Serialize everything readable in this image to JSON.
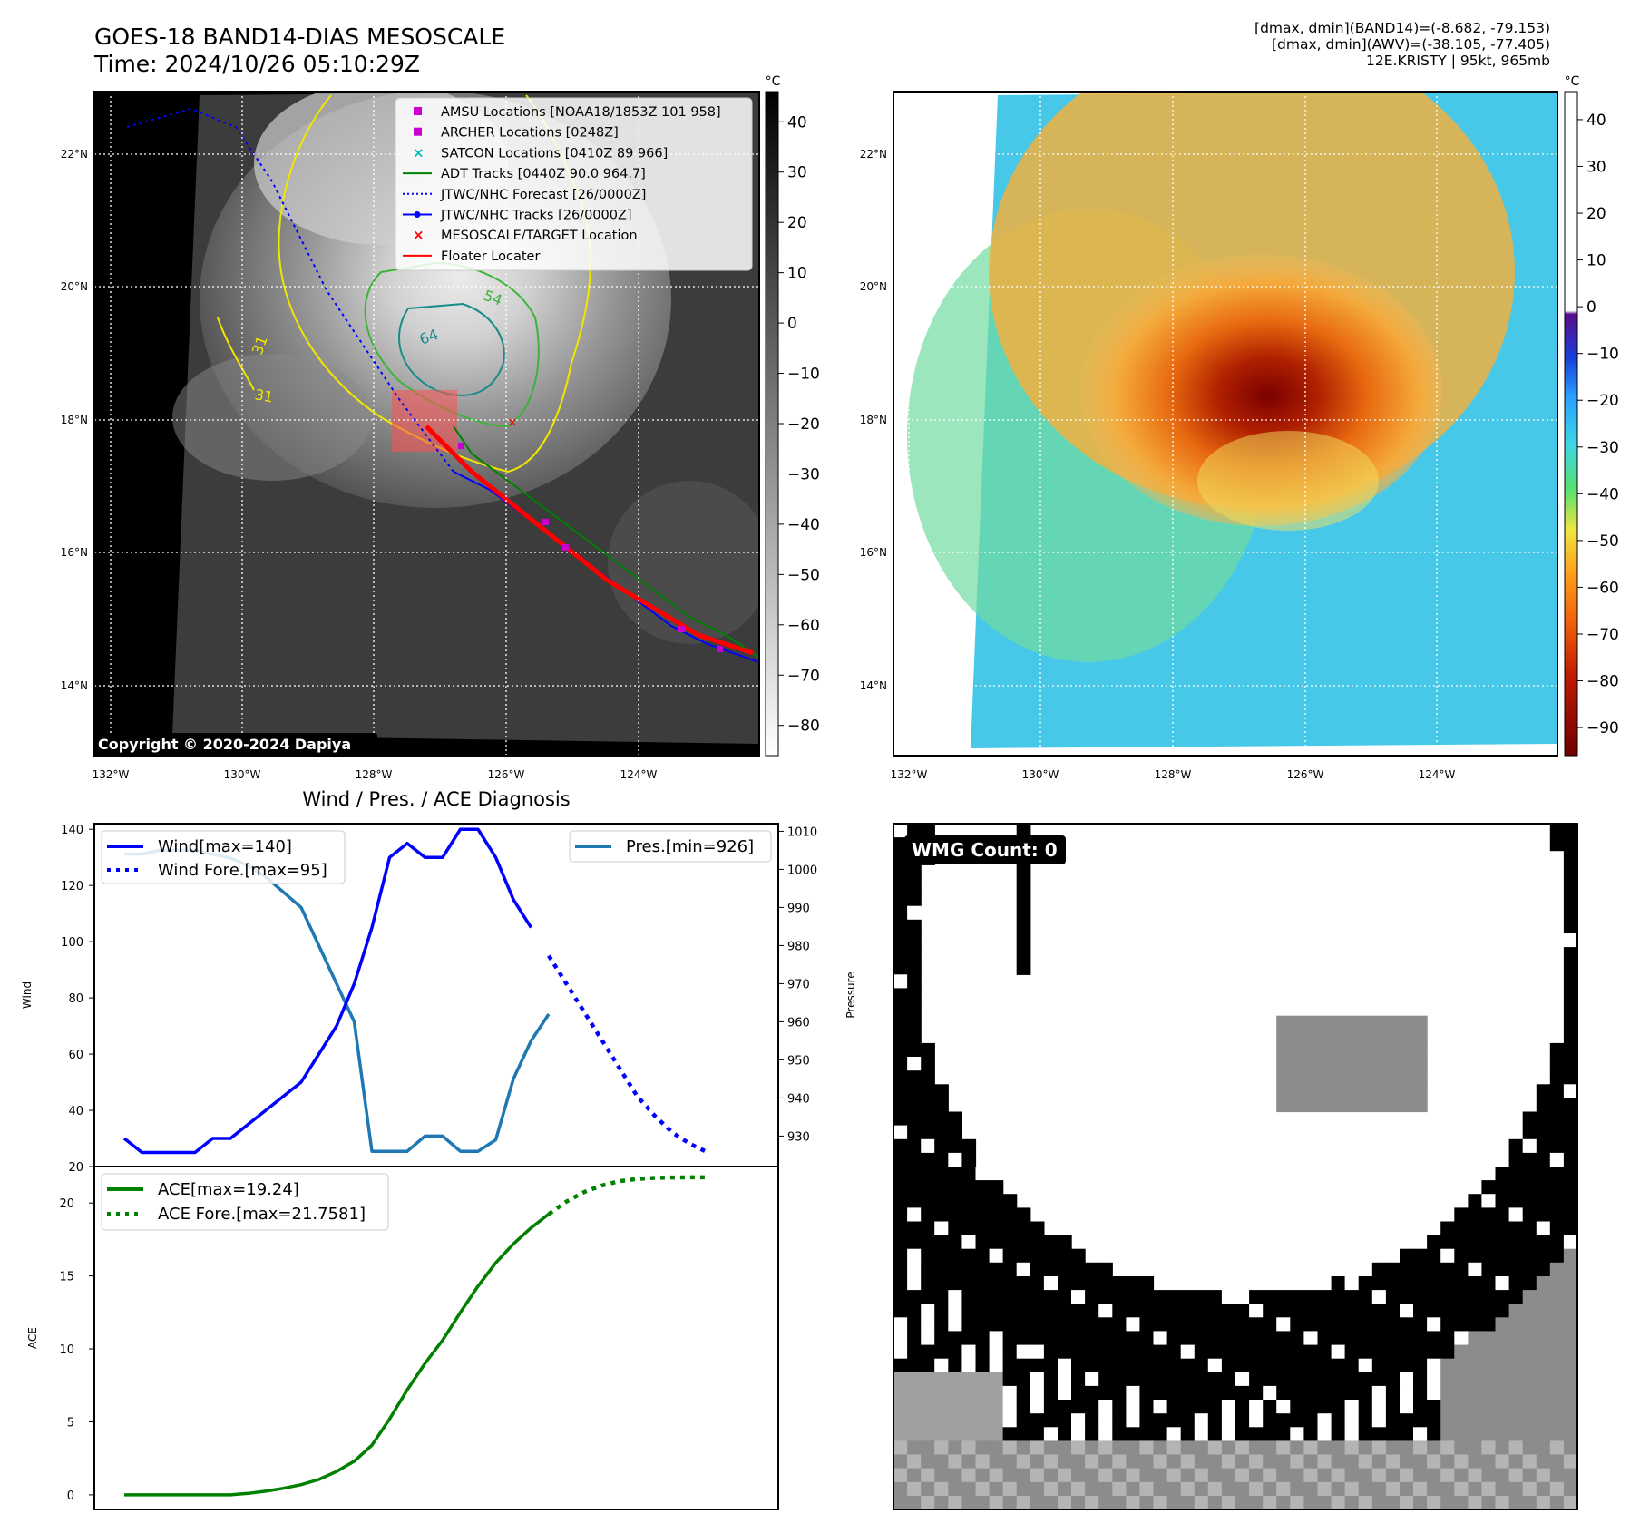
{
  "header": {
    "title_line1": "GOES-18 BAND14-DIAS MESOSCALE",
    "title_line2": "Time: 2024/10/26 05:10:29Z",
    "info_line1": "[dmax, dmin](BAND14)=(-8.682, -79.153)",
    "info_line2": "[dmax, dmin](AWV)=(-38.105, -77.405)",
    "info_line3": "12E.KRISTY | 95kt, 965mb"
  },
  "map_axes": {
    "lon_labels": [
      "132°W",
      "130°W",
      "128°W",
      "126°W",
      "124°W"
    ],
    "lat_labels": [
      "22°N",
      "20°N",
      "18°N",
      "16°N",
      "14°N"
    ]
  },
  "ir_panel": {
    "colorbar_unit": "°C",
    "colorbar_ticks": [
      "40",
      "30",
      "20",
      "10",
      "0",
      "−10",
      "−20",
      "−30",
      "−40",
      "−50",
      "−60",
      "−70",
      "−80"
    ],
    "contour_labels": [
      "54",
      "64",
      "31",
      "31"
    ],
    "copyright": "Copyright © 2020-2024 Dapiya",
    "legend": [
      {
        "label": "AMSU Locations [NOAA18/1853Z 101 958]",
        "color": "#cc00cc",
        "marker": "square"
      },
      {
        "label": "ARCHER Locations [0248Z]",
        "color": "#cc00cc",
        "marker": "square"
      },
      {
        "label": "SATCON Locations [0410Z 89 966]",
        "color": "#00bbbb",
        "marker": "x"
      },
      {
        "label": "ADT Tracks [0440Z 90.0 964.7]",
        "color": "#008000",
        "marker": "line"
      },
      {
        "label": "JTWC/NHC Forecast [26/0000Z]",
        "color": "#0000ff",
        "marker": "dotted"
      },
      {
        "label": "JTWC/NHC Tracks [26/0000Z]",
        "color": "#0000ff",
        "marker": "line-dot"
      },
      {
        "label": "MESOSCALE/TARGET Location",
        "color": "#ff0000",
        "marker": "x"
      },
      {
        "label": "Floater Locater",
        "color": "#ff0000",
        "marker": "line"
      }
    ]
  },
  "wv_panel": {
    "colorbar_unit": "°C",
    "colorbar_ticks": [
      "40",
      "30",
      "20",
      "10",
      "0",
      "−10",
      "−20",
      "−30",
      "−40",
      "−50",
      "−60",
      "−70",
      "−80",
      "−90"
    ]
  },
  "wmg_panel": {
    "badge": "WMG Count: 0"
  },
  "chart_data": [
    {
      "type": "line",
      "title": "Wind / Pres. / ACE Diagnosis",
      "ylabel": "Wind",
      "ylim": [
        20,
        142
      ],
      "yticks": [
        20,
        40,
        60,
        80,
        100,
        120,
        140
      ],
      "x": [
        0,
        1,
        2,
        3,
        4,
        5,
        6,
        7,
        8,
        9,
        10,
        11,
        12,
        13,
        14,
        15,
        16,
        17,
        18,
        19,
        20,
        21,
        22,
        23,
        24,
        25,
        26,
        27,
        28,
        29,
        30,
        31,
        32,
        33
      ],
      "series": [
        {
          "name": "Wind[max=140]",
          "color": "#0000ff",
          "style": "solid",
          "x": [
            0,
            1,
            2,
            3,
            4,
            5,
            6,
            7,
            8,
            9,
            10,
            11,
            12,
            13,
            14,
            15,
            16,
            17,
            18,
            19,
            20,
            21,
            22,
            23
          ],
          "values": [
            30,
            25,
            25,
            25,
            25,
            30,
            30,
            35,
            40,
            45,
            50,
            60,
            70,
            85,
            105,
            130,
            135,
            130,
            130,
            140,
            140,
            130,
            115,
            105
          ]
        },
        {
          "name": "Wind Fore.[max=95]",
          "color": "#0000ff",
          "style": "dotted",
          "x": [
            24,
            25,
            26,
            27,
            28,
            29,
            30,
            31,
            32,
            33
          ],
          "values": [
            95,
            85,
            75,
            65,
            55,
            45,
            38,
            32,
            28,
            25
          ]
        }
      ],
      "secondary": {
        "ylabel": "Pressure",
        "ylim": [
          922,
          1012
        ],
        "yticks": [
          930,
          940,
          950,
          960,
          970,
          980,
          990,
          1000,
          1010
        ],
        "series": [
          {
            "name": "Pres.[min=926]",
            "color": "#1f77b4",
            "style": "solid",
            "x": [
              0,
              1,
              2,
              3,
              4,
              5,
              6,
              7,
              8,
              9,
              10,
              11,
              12,
              13,
              14,
              15,
              16,
              17,
              18,
              19,
              20,
              21,
              22,
              23,
              24
            ],
            "values": [
              1004,
              1004,
              1005,
              1005,
              1005,
              1004,
              1003,
              1001,
              998,
              994,
              990,
              980,
              970,
              960,
              926,
              926,
              926,
              930,
              930,
              926,
              926,
              929,
              945,
              955,
              962
            ]
          }
        ]
      },
      "legend_left": "upper-left",
      "legend_right": "upper-right"
    },
    {
      "type": "line",
      "ylabel": "ACE",
      "ylim": [
        -1,
        22.5
      ],
      "yticks": [
        0,
        5,
        10,
        15,
        20
      ],
      "series": [
        {
          "name": "ACE[max=19.24]",
          "color": "#008000",
          "style": "solid",
          "x": [
            0,
            1,
            2,
            3,
            4,
            5,
            6,
            7,
            8,
            9,
            10,
            11,
            12,
            13,
            14,
            15,
            16,
            17,
            18,
            19,
            20,
            21,
            22,
            23,
            24
          ],
          "values": [
            0,
            0,
            0,
            0,
            0,
            0,
            0,
            0.1,
            0.25,
            0.45,
            0.7,
            1.05,
            1.6,
            2.3,
            3.4,
            5.2,
            7.2,
            9.0,
            10.6,
            12.5,
            14.3,
            15.9,
            17.2,
            18.3,
            19.24
          ]
        },
        {
          "name": "ACE Fore.[max=21.7581]",
          "color": "#008000",
          "style": "dotted",
          "x": [
            24,
            25,
            26,
            27,
            28,
            29,
            30,
            31,
            32,
            33
          ],
          "values": [
            19.24,
            20.1,
            20.75,
            21.2,
            21.5,
            21.65,
            21.72,
            21.75,
            21.758,
            21.7581
          ]
        }
      ],
      "legend": "upper-left"
    }
  ]
}
